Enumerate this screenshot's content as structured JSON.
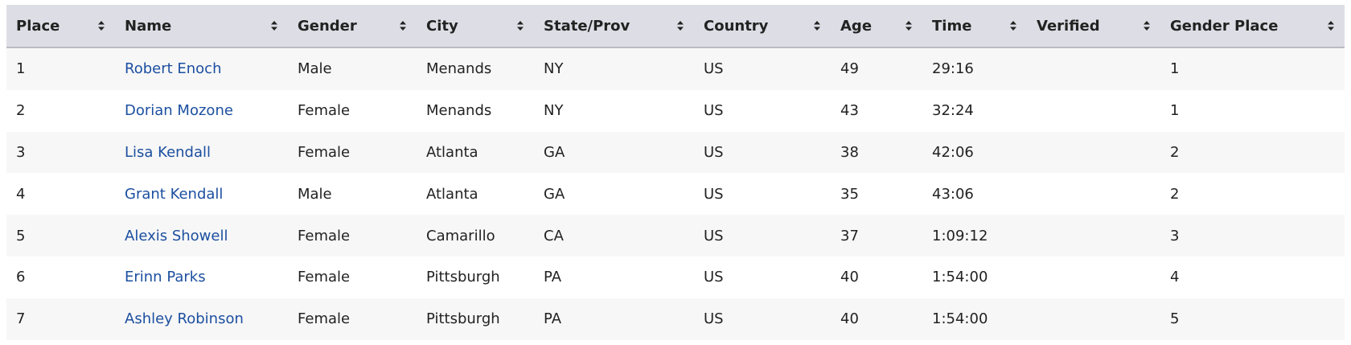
{
  "table": {
    "headers": [
      "Place",
      "Name",
      "Gender",
      "City",
      "State/Prov",
      "Country",
      "Age",
      "Time",
      "Verified",
      "Gender Place"
    ],
    "rows": [
      {
        "place": 1,
        "name": "Robert Enoch",
        "gender": "Male",
        "city": "Menands",
        "state": "NY",
        "country": "US",
        "age": 49,
        "time": "29:16",
        "gender_place": 1
      },
      {
        "place": 2,
        "name": "Dorian Mozone",
        "gender": "Female",
        "city": "Menands",
        "state": "NY",
        "country": "US",
        "age": 43,
        "time": "32:24",
        "gender_place": 1
      },
      {
        "place": 3,
        "name": "Lisa Kendall",
        "gender": "Female",
        "city": "Atlanta",
        "state": "GA",
        "country": "US",
        "age": 38,
        "time": "42:06",
        "gender_place": 2
      },
      {
        "place": 4,
        "name": "Grant Kendall",
        "gender": "Male",
        "city": "Atlanta",
        "state": "GA",
        "country": "US",
        "age": 35,
        "time": "43:06",
        "gender_place": 2
      },
      {
        "place": 5,
        "name": "Alexis Showell",
        "gender": "Female",
        "city": "Camarillo",
        "state": "CA",
        "country": "US",
        "age": 37,
        "time": "1:09:12",
        "gender_place": 3
      },
      {
        "place": 6,
        "name": "Erinn Parks",
        "gender": "Female",
        "city": "Pittsburgh",
        "state": "PA",
        "country": "US",
        "age": 40,
        "time": "1:54:00",
        "gender_place": 4
      },
      {
        "place": 7,
        "name": "Ashley Robinson",
        "gender": "Female",
        "city": "Pittsburgh",
        "state": "PA",
        "country": "US",
        "age": 40,
        "time": "1:54:00",
        "gender_place": 5
      }
    ]
  }
}
